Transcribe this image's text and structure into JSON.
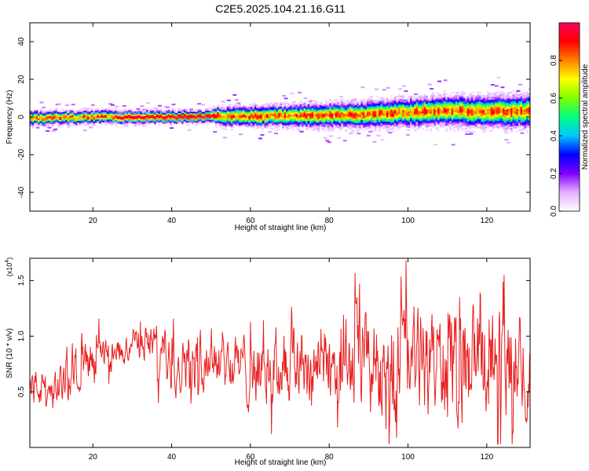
{
  "figure": {
    "title": "C2E5.2025.104.21.16.G11"
  },
  "chart_data": [
    {
      "type": "heatmap",
      "xlabel": "Height of straight line (km)",
      "ylabel": "Frequency (Hz)",
      "xlim": [
        4,
        131
      ],
      "ylim": [
        -50,
        50
      ],
      "x_ticks": [
        20,
        40,
        60,
        80,
        100,
        120
      ],
      "y_ticks": [
        -40,
        -20,
        0,
        20,
        40
      ],
      "grid": false,
      "colorbar": {
        "label": "Normalized spectral amplitude",
        "range": [
          0,
          1
        ],
        "ticks": [
          0.0,
          0.2,
          0.4,
          0.6,
          0.8
        ],
        "colormap": [
          "#ffffff",
          "#e4b0ff",
          "#8000ff",
          "#0000ff",
          "#00c8ff",
          "#00ff80",
          "#80ff00",
          "#ffff00",
          "#ff8000",
          "#ff0000",
          "#ff0060"
        ]
      },
      "band_center_hz": [
        [
          4,
          -0.5
        ],
        [
          20,
          0
        ],
        [
          40,
          0
        ],
        [
          50,
          0.5
        ],
        [
          60,
          0.5
        ],
        [
          80,
          1
        ],
        [
          90,
          1.5
        ],
        [
          100,
          2.5
        ],
        [
          110,
          3.5
        ],
        [
          120,
          3
        ],
        [
          131,
          3
        ]
      ],
      "band_halfwidth_hz": [
        [
          4,
          3
        ],
        [
          50,
          2.5
        ],
        [
          52,
          4
        ],
        [
          80,
          5
        ],
        [
          100,
          6
        ],
        [
          131,
          7
        ]
      ]
    },
    {
      "type": "line",
      "xlabel": "Height of straight line (km)",
      "ylabel": "SNR (10 * v/v)",
      "scale_label": "(x10",
      "scale_exp": "4",
      "scale_close": ")",
      "xlim": [
        4,
        131
      ],
      "ylim": [
        0,
        1.7
      ],
      "x_ticks": [
        20,
        40,
        60,
        80,
        100,
        120
      ],
      "y_ticks": [
        0.5,
        1.0,
        1.5
      ],
      "grid": false,
      "color": "#e82020",
      "envelope_center": [
        [
          4,
          0.55
        ],
        [
          10,
          0.5
        ],
        [
          15,
          0.7
        ],
        [
          20,
          0.75
        ],
        [
          25,
          0.8
        ],
        [
          30,
          0.95
        ],
        [
          35,
          0.95
        ],
        [
          40,
          0.75
        ],
        [
          45,
          0.85
        ],
        [
          50,
          0.85
        ],
        [
          55,
          0.75
        ],
        [
          60,
          0.7
        ],
        [
          70,
          0.75
        ],
        [
          80,
          0.75
        ],
        [
          90,
          0.75
        ],
        [
          100,
          0.75
        ],
        [
          110,
          0.75
        ],
        [
          120,
          0.75
        ],
        [
          131,
          0.75
        ]
      ],
      "envelope_spread": [
        [
          4,
          0.2
        ],
        [
          20,
          0.22
        ],
        [
          30,
          0.15
        ],
        [
          40,
          0.3
        ],
        [
          60,
          0.35
        ],
        [
          80,
          0.45
        ],
        [
          90,
          0.55
        ],
        [
          131,
          0.6
        ]
      ],
      "ymax_observed": 1.68
    }
  ]
}
